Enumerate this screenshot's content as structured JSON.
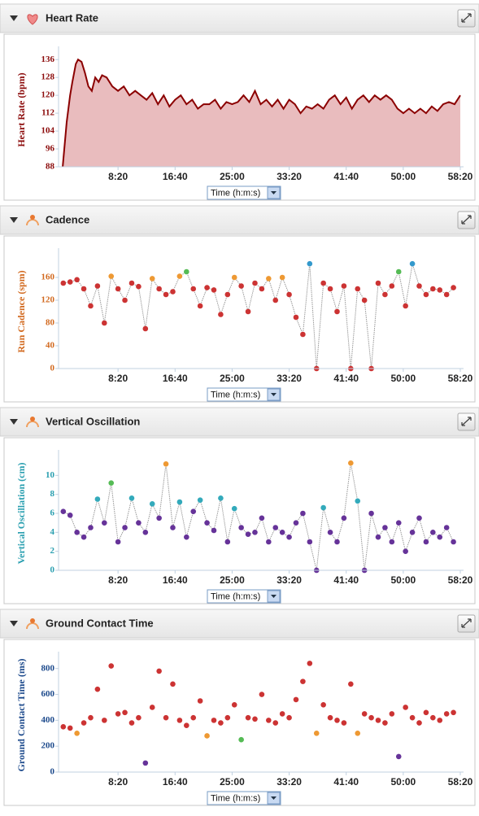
{
  "chart_data": [
    {
      "type": "area",
      "title": "Heart Rate",
      "ylabel": "Heart Rate (bpm)",
      "xlabel": "Time (h:m:s)",
      "axis_color": "#8b0a0a",
      "color": "#8b0000",
      "fill_color": "#e9bcbe",
      "x": [
        15,
        50,
        80,
        100,
        130,
        150,
        180,
        210,
        240,
        270,
        300,
        330,
        360,
        400,
        450,
        500,
        550,
        600,
        650,
        700,
        750,
        800,
        850,
        900,
        950,
        1000,
        1050,
        1100,
        1150,
        1200,
        1250,
        1300,
        1350,
        1400,
        1450,
        1500,
        1550,
        1600,
        1650,
        1700,
        1750,
        1800,
        1850,
        1900,
        1950,
        2000,
        2050,
        2100,
        2150,
        2200,
        2250,
        2300,
        2350,
        2400,
        2450,
        2500,
        2550,
        2600,
        2650,
        2700,
        2750,
        2800,
        2850,
        2900,
        2950,
        3000,
        3050,
        3100,
        3150,
        3200,
        3250,
        3300,
        3350,
        3400,
        3450,
        3500
      ],
      "values": [
        88,
        108,
        120,
        126,
        134,
        136,
        135,
        130,
        124,
        122,
        128,
        126,
        129,
        128,
        124,
        122,
        124,
        120,
        122,
        120,
        118,
        121,
        116,
        120,
        115,
        118,
        120,
        116,
        118,
        114,
        116,
        116,
        118,
        114,
        117,
        116,
        117,
        120,
        117,
        122,
        116,
        118,
        115,
        118,
        114,
        118,
        116,
        112,
        115,
        114,
        116,
        114,
        118,
        120,
        116,
        119,
        114,
        118,
        120,
        117,
        120,
        118,
        120,
        118,
        114,
        112,
        114,
        112,
        114,
        112,
        115,
        113,
        116,
        117,
        116,
        120
      ],
      "xlim": [
        0,
        3500
      ],
      "ylim": [
        88,
        139
      ],
      "yticks": [
        88,
        96,
        104,
        112,
        120,
        128,
        136
      ],
      "xticks": [
        {
          "value": 500,
          "label": "8:20"
        },
        {
          "value": 1000,
          "label": "16:40"
        },
        {
          "value": 1500,
          "label": "25:00"
        },
        {
          "value": 2000,
          "label": "33:20"
        },
        {
          "value": 2500,
          "label": "41:40"
        },
        {
          "value": 3000,
          "label": "50:00"
        },
        {
          "value": 3500,
          "label": "58:20"
        }
      ]
    },
    {
      "type": "scatter",
      "connect": true,
      "title": "Cadence",
      "ylabel": "Run Cadence (spm)",
      "xlabel": "Time (h:m:s)",
      "axis_color": "#d2691e",
      "x": [
        20,
        80,
        140,
        200,
        260,
        320,
        380,
        440,
        500,
        560,
        620,
        680,
        740,
        800,
        860,
        920,
        980,
        1040,
        1100,
        1160,
        1220,
        1280,
        1340,
        1400,
        1460,
        1520,
        1580,
        1640,
        1700,
        1760,
        1820,
        1880,
        1940,
        2000,
        2060,
        2120,
        2180,
        2240,
        2300,
        2360,
        2420,
        2480,
        2540,
        2600,
        2660,
        2720,
        2780,
        2840,
        2900,
        2960,
        3020,
        3080,
        3140,
        3200,
        3260,
        3320,
        3380,
        3440
      ],
      "values": [
        150,
        152,
        156,
        140,
        110,
        145,
        80,
        162,
        140,
        120,
        150,
        144,
        70,
        158,
        140,
        130,
        135,
        162,
        170,
        140,
        110,
        142,
        138,
        95,
        130,
        160,
        145,
        100,
        150,
        140,
        158,
        120,
        160,
        130,
        90,
        60,
        184,
        0,
        150,
        140,
        100,
        145,
        0,
        140,
        120,
        0,
        150,
        130,
        145,
        170,
        110,
        184,
        145,
        130,
        140,
        138,
        130,
        142
      ],
      "point_colors": [
        "#c33",
        "#c33",
        "#c33",
        "#c33",
        "#c33",
        "#c33",
        "#c33",
        "#e93",
        "#c33",
        "#c33",
        "#c33",
        "#c33",
        "#c33",
        "#e93",
        "#c33",
        "#c33",
        "#c33",
        "#e93",
        "#5b5",
        "#c33",
        "#c33",
        "#c33",
        "#c33",
        "#c33",
        "#c33",
        "#e93",
        "#c33",
        "#c33",
        "#c33",
        "#c33",
        "#e93",
        "#c33",
        "#e93",
        "#c33",
        "#c33",
        "#c33",
        "#39c",
        "#c33",
        "#c33",
        "#c33",
        "#c33",
        "#c33",
        "#c33",
        "#c33",
        "#c33",
        "#c33",
        "#c33",
        "#c33",
        "#c33",
        "#5b5",
        "#c33",
        "#39c",
        "#c33",
        "#c33",
        "#c33",
        "#c33",
        "#c33",
        "#c33"
      ],
      "xlim": [
        0,
        3500
      ],
      "ylim": [
        0,
        200
      ],
      "yticks": [
        0,
        40,
        80,
        120,
        160
      ],
      "xticks": [
        {
          "value": 500,
          "label": "8:20"
        },
        {
          "value": 1000,
          "label": "16:40"
        },
        {
          "value": 1500,
          "label": "25:00"
        },
        {
          "value": 2000,
          "label": "33:20"
        },
        {
          "value": 2500,
          "label": "41:40"
        },
        {
          "value": 3000,
          "label": "50:00"
        },
        {
          "value": 3500,
          "label": "58:20"
        }
      ]
    },
    {
      "type": "scatter",
      "connect": true,
      "title": "Vertical Oscillation",
      "ylabel": "Vertical Oscillation (cm)",
      "xlabel": "Time (h:m:s)",
      "axis_color": "#2a9fb0",
      "x": [
        20,
        80,
        140,
        200,
        260,
        320,
        380,
        440,
        500,
        560,
        620,
        680,
        740,
        800,
        860,
        920,
        980,
        1040,
        1100,
        1160,
        1220,
        1280,
        1340,
        1400,
        1460,
        1520,
        1580,
        1640,
        1700,
        1760,
        1820,
        1880,
        1940,
        2000,
        2060,
        2120,
        2180,
        2240,
        2300,
        2360,
        2420,
        2480,
        2540,
        2600,
        2660,
        2720,
        2780,
        2840,
        2900,
        2960,
        3020,
        3080,
        3140,
        3200,
        3260,
        3320,
        3380,
        3440
      ],
      "values": [
        6.2,
        5.8,
        4.0,
        3.5,
        4.5,
        7.5,
        5.0,
        9.2,
        3.0,
        4.5,
        7.6,
        5.0,
        4.0,
        7.0,
        5.5,
        11.2,
        4.5,
        7.2,
        3.5,
        6.2,
        7.4,
        5.0,
        4.2,
        7.6,
        3.0,
        6.5,
        4.5,
        3.8,
        4.0,
        5.5,
        3.0,
        4.5,
        4.0,
        3.5,
        5.0,
        6.0,
        3.0,
        0,
        6.6,
        4.0,
        3.0,
        5.5,
        11.3,
        7.3,
        0,
        6.0,
        3.5,
        4.5,
        3.0,
        5.0,
        2.0,
        4.0,
        5.5,
        3.0,
        4.0,
        3.5,
        4.5,
        3.0
      ],
      "point_colors": [
        "#639",
        "#639",
        "#639",
        "#639",
        "#639",
        "#3ab",
        "#639",
        "#5b5",
        "#639",
        "#639",
        "#3ab",
        "#639",
        "#639",
        "#3ab",
        "#639",
        "#e93",
        "#639",
        "#3ab",
        "#639",
        "#639",
        "#3ab",
        "#639",
        "#639",
        "#3ab",
        "#639",
        "#3ab",
        "#639",
        "#639",
        "#639",
        "#639",
        "#639",
        "#639",
        "#639",
        "#639",
        "#639",
        "#639",
        "#639",
        "#639",
        "#3ab",
        "#639",
        "#639",
        "#639",
        "#e93",
        "#3ab",
        "#639",
        "#639",
        "#639",
        "#639",
        "#639",
        "#639",
        "#639",
        "#639",
        "#639",
        "#639",
        "#639",
        "#639",
        "#639",
        "#639"
      ],
      "xlim": [
        0,
        3500
      ],
      "ylim": [
        0,
        12
      ],
      "yticks": [
        0,
        2,
        4,
        6,
        8,
        10
      ],
      "xticks": [
        {
          "value": 500,
          "label": "8:20"
        },
        {
          "value": 1000,
          "label": "16:40"
        },
        {
          "value": 1500,
          "label": "25:00"
        },
        {
          "value": 2000,
          "label": "33:20"
        },
        {
          "value": 2500,
          "label": "41:40"
        },
        {
          "value": 3000,
          "label": "50:00"
        },
        {
          "value": 3500,
          "label": "58:20"
        }
      ]
    },
    {
      "type": "scatter",
      "connect": false,
      "title": "Ground Contact Time",
      "ylabel": "Ground Contact Time (ms)",
      "xlabel": "Time (h:m:s)",
      "axis_color": "#1d4a8c",
      "x": [
        20,
        80,
        140,
        200,
        260,
        320,
        380,
        440,
        500,
        560,
        620,
        680,
        740,
        800,
        860,
        920,
        980,
        1040,
        1100,
        1160,
        1220,
        1280,
        1340,
        1400,
        1460,
        1520,
        1580,
        1640,
        1700,
        1760,
        1820,
        1880,
        1940,
        2000,
        2060,
        2120,
        2180,
        2240,
        2300,
        2360,
        2420,
        2480,
        2540,
        2600,
        2660,
        2720,
        2780,
        2840,
        2900,
        2960,
        3020,
        3080,
        3140,
        3200,
        3260,
        3320,
        3380,
        3440
      ],
      "values": [
        350,
        340,
        300,
        380,
        420,
        640,
        400,
        820,
        450,
        460,
        380,
        420,
        70,
        500,
        780,
        420,
        680,
        400,
        360,
        420,
        550,
        280,
        400,
        380,
        420,
        520,
        250,
        420,
        410,
        600,
        400,
        380,
        450,
        420,
        560,
        700,
        840,
        300,
        520,
        420,
        400,
        380,
        680,
        300,
        450,
        420,
        400,
        380,
        450,
        120,
        500,
        420,
        380,
        460,
        420,
        400,
        450,
        460
      ],
      "point_colors": [
        "#c33",
        "#c33",
        "#e93",
        "#c33",
        "#c33",
        "#c33",
        "#c33",
        "#c33",
        "#c33",
        "#c33",
        "#c33",
        "#c33",
        "#639",
        "#c33",
        "#c33",
        "#c33",
        "#c33",
        "#c33",
        "#c33",
        "#c33",
        "#c33",
        "#e93",
        "#c33",
        "#c33",
        "#c33",
        "#c33",
        "#5b5",
        "#c33",
        "#c33",
        "#c33",
        "#c33",
        "#c33",
        "#c33",
        "#c33",
        "#c33",
        "#c33",
        "#c33",
        "#e93",
        "#c33",
        "#c33",
        "#c33",
        "#c33",
        "#c33",
        "#e93",
        "#c33",
        "#c33",
        "#c33",
        "#c33",
        "#c33",
        "#639",
        "#c33",
        "#c33",
        "#c33",
        "#c33",
        "#c33",
        "#c33",
        "#c33",
        "#c33"
      ],
      "xlim": [
        0,
        3500
      ],
      "ylim": [
        0,
        880
      ],
      "yticks": [
        0,
        200,
        400,
        600,
        800
      ],
      "xticks": [
        {
          "value": 500,
          "label": "8:20"
        },
        {
          "value": 1000,
          "label": "16:40"
        },
        {
          "value": 1500,
          "label": "25:00"
        },
        {
          "value": 2000,
          "label": "33:20"
        },
        {
          "value": 2500,
          "label": "41:40"
        },
        {
          "value": 3000,
          "label": "50:00"
        },
        {
          "value": 3500,
          "label": "58:20"
        }
      ]
    }
  ]
}
